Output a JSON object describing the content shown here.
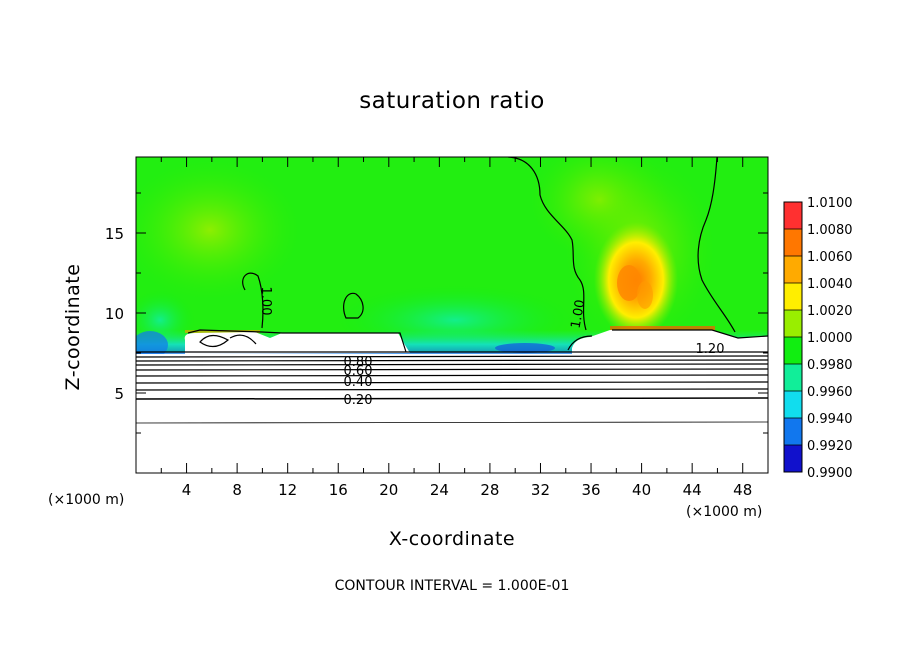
{
  "chart_data": {
    "type": "heatmap",
    "title": "saturation ratio",
    "xlabel": "X-coordinate",
    "ylabel": "Z-coordinate",
    "x_unit": "(×1000 m)",
    "y_unit": "(×1000 m)",
    "xlim": [
      0,
      50
    ],
    "ylim": [
      0,
      19.75
    ],
    "x_ticks": [
      "4",
      "8",
      "12",
      "16",
      "20",
      "24",
      "28",
      "32",
      "36",
      "40",
      "44",
      "48"
    ],
    "y_ticks": [
      "5",
      "10",
      "15"
    ],
    "colorbar": {
      "levels": [
        "1.0100",
        "1.0080",
        "1.0060",
        "1.0040",
        "1.0020",
        "1.0000",
        "0.9980",
        "0.9960",
        "0.9940",
        "0.9920",
        "0.9900"
      ],
      "min": 0.99,
      "max": 1.01,
      "colors": [
        "#f2a0a0",
        "#ff3030",
        "#ff7700",
        "#ffaa00",
        "#ffee00",
        "#99ee00",
        "#11ee11",
        "#11ee99",
        "#11ddee",
        "#1177ee",
        "#1111cc",
        "#5500aa"
      ]
    },
    "contour_labels": [
      "1.00",
      "1.00",
      "0.80",
      "0.60",
      "0.40",
      "0.20",
      "1.20"
    ],
    "footer": "CONTOUR INTERVAL = 1.000E-01"
  }
}
